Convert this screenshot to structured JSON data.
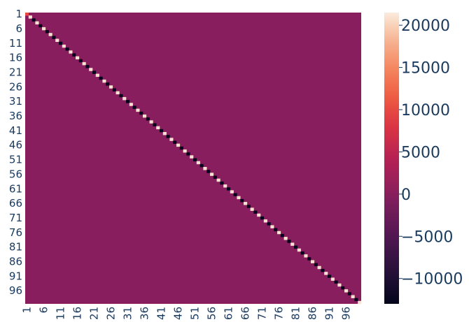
{
  "chart_data": {
    "type": "heatmap",
    "title": "",
    "xlabel": "",
    "ylabel": "",
    "n": 100,
    "off_diagonal_value": 0,
    "diagonal_values": {
      "default": -13000,
      "alternate": 21000,
      "pattern": "alternating",
      "first_cells": [
        {
          "index": 1,
          "value": 10000
        },
        {
          "index": 2,
          "value": 21000
        }
      ]
    },
    "x_tick_labels": [
      "1",
      "6",
      "11",
      "16",
      "21",
      "26",
      "31",
      "36",
      "41",
      "46",
      "51",
      "56",
      "61",
      "66",
      "71",
      "76",
      "81",
      "86",
      "91",
      "96"
    ],
    "y_tick_labels": [
      "1",
      "6",
      "11",
      "16",
      "21",
      "26",
      "31",
      "36",
      "41",
      "46",
      "51",
      "56",
      "61",
      "66",
      "71",
      "76",
      "81",
      "86",
      "91",
      "96"
    ],
    "colorbar": {
      "vmin": -13000,
      "vmax": 21500,
      "ticks": [
        {
          "value": 20000,
          "label": "20000"
        },
        {
          "value": 15000,
          "label": "15000"
        },
        {
          "value": 10000,
          "label": "10000"
        },
        {
          "value": 5000,
          "label": "5000"
        },
        {
          "value": 0,
          "label": "0"
        },
        {
          "value": -5000,
          "label": "−5000"
        },
        {
          "value": -10000,
          "label": "−10000"
        }
      ]
    },
    "colormap": "rocket"
  }
}
